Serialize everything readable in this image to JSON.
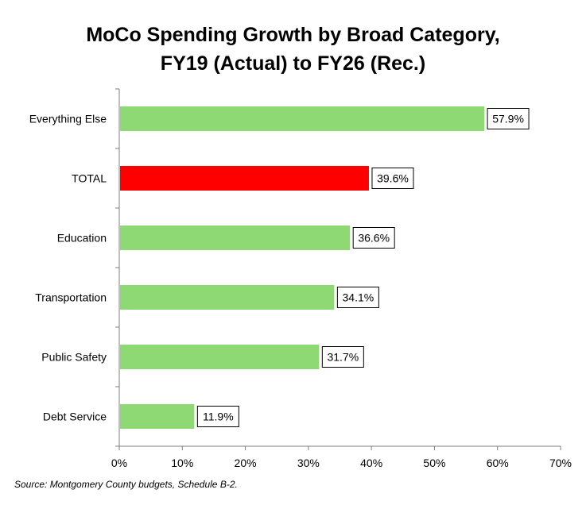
{
  "title": {
    "line1": "MoCo Spending Growth by Broad Category,",
    "line2": "FY19 (Actual) to FY26 (Rec.)"
  },
  "source": "Source: Montgomery County budgets, Schedule B-2.",
  "colors": {
    "bar_default": "#8ED973",
    "bar_highlight": "#FF0000",
    "axis": "#7F7F7F"
  },
  "chart_data": {
    "type": "bar",
    "orientation": "horizontal",
    "categories": [
      "Everything Else",
      "TOTAL",
      "Education",
      "Transportation",
      "Public Safety",
      "Debt Service"
    ],
    "values": [
      57.9,
      39.6,
      36.6,
      34.1,
      31.7,
      11.9
    ],
    "data_labels": [
      "57.9%",
      "39.6%",
      "36.6%",
      "34.1%",
      "31.7%",
      "11.9%"
    ],
    "highlight": "TOTAL",
    "xlim": [
      0,
      70
    ],
    "xticks": [
      0,
      10,
      20,
      30,
      40,
      50,
      60,
      70
    ],
    "xtick_labels": [
      "0%",
      "10%",
      "20%",
      "30%",
      "40%",
      "50%",
      "60%",
      "70%"
    ],
    "grid": false,
    "legend": "none"
  }
}
